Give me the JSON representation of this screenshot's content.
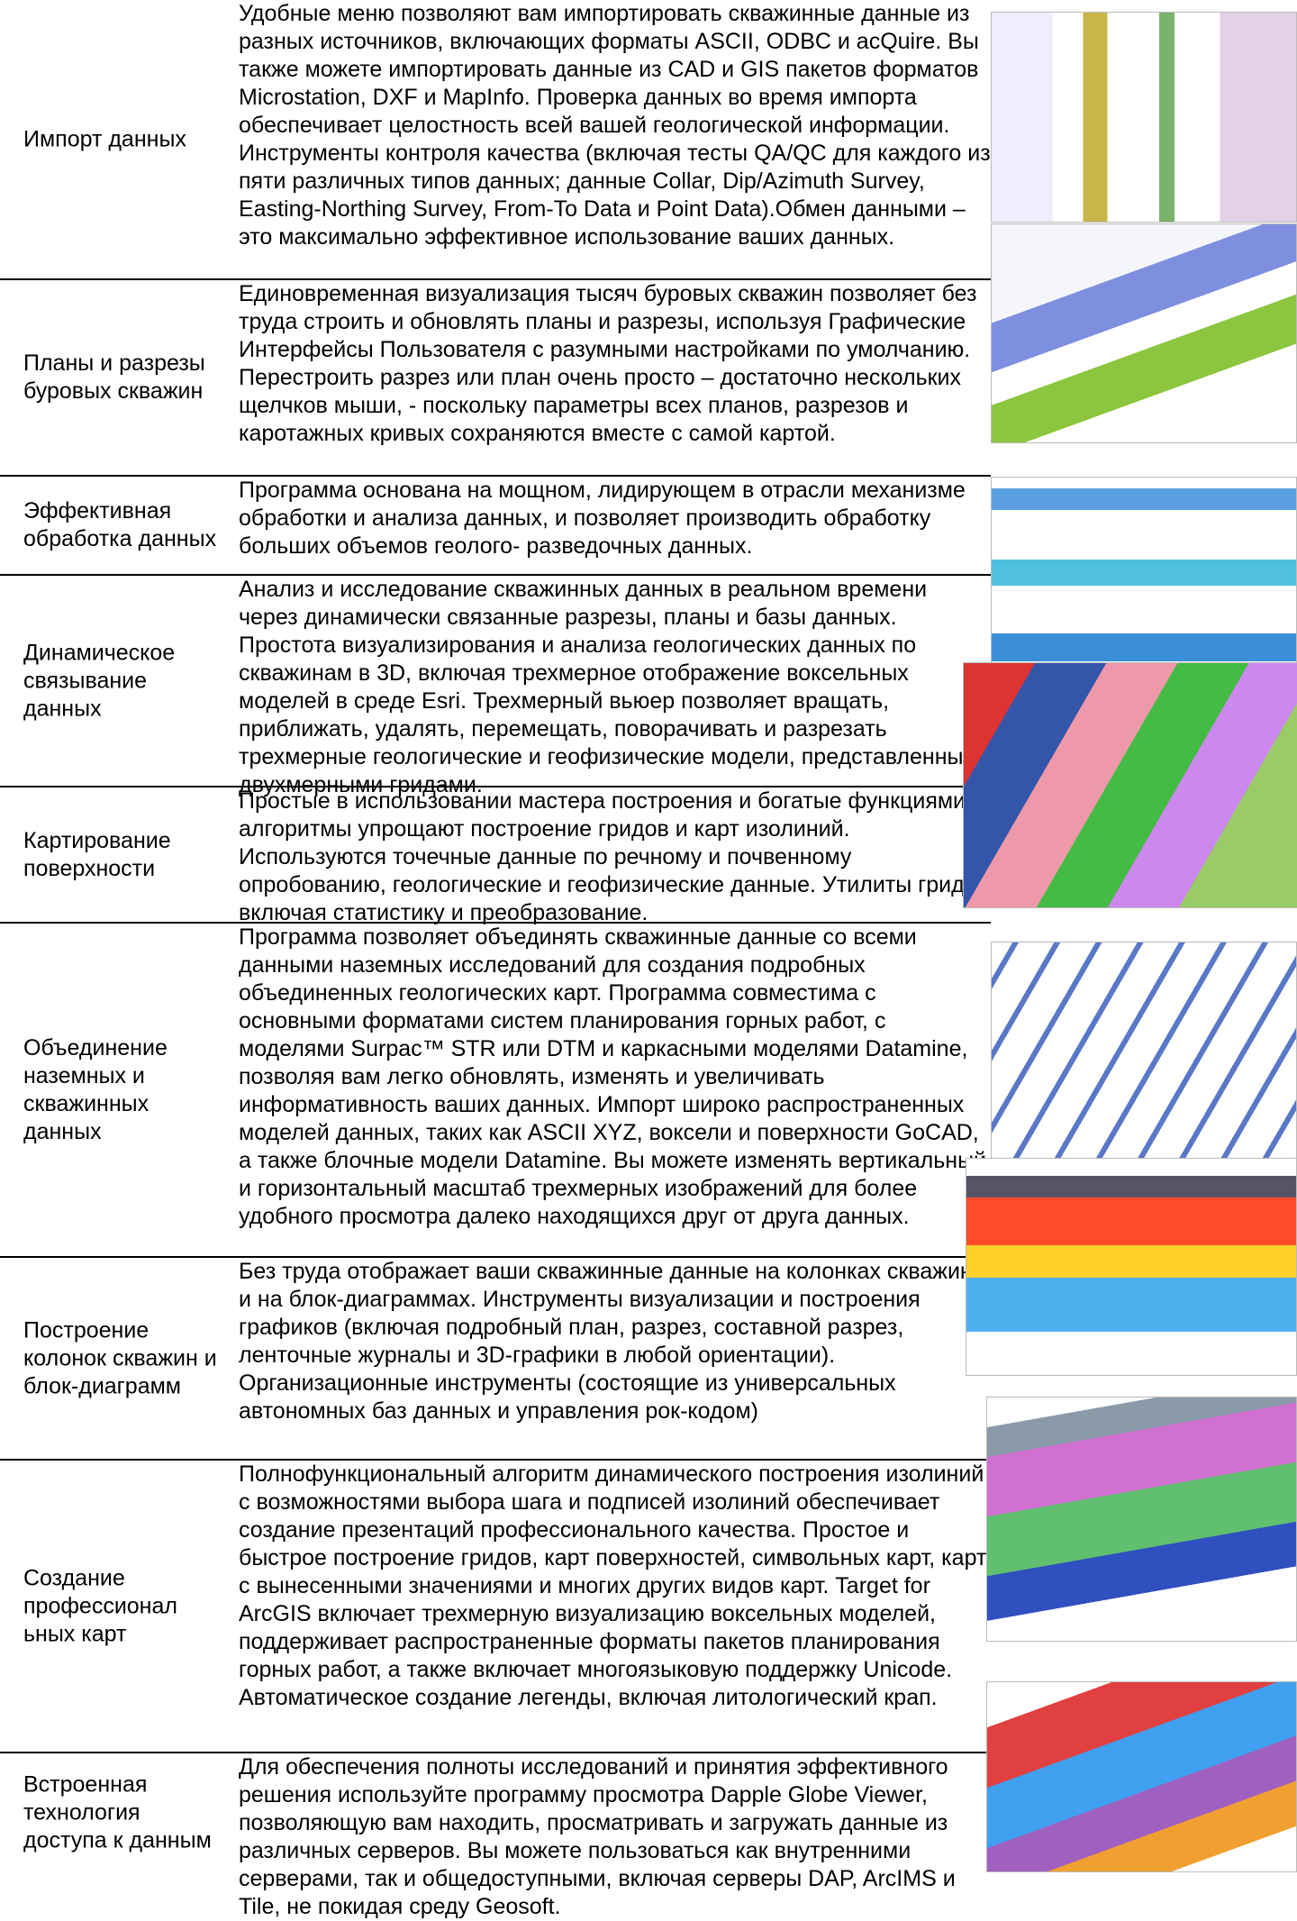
{
  "table": {
    "rows": [
      [
        "Импорт данных",
        "Удобные меню позволяют вам импортировать скважинные данные из разных источников, включающих форматы ASCII, ODBC и acQuire. Вы также можете импортировать данные из CAD и GIS пакетов форматов Microstation, DXF и MapInfo. Проверка данных во время импорта обеспечивает целостность всей вашей геологической информации. Инструменты контроля качества (включая тесты QA/QC для каждого из пяти различных типов данных; данные Collar, Dip/Azimuth Survey, Easting-Northing Survey, From-To Data и Point Data).Обмен данными – это максимально эффективное использование ваших данных."
      ],
      [
        "Планы и разрезы буровых скважин",
        "Единовременная визуализация тысяч буровых скважин позволяет без труда строить и обновлять планы и разрезы, используя Графические Интерфейсы Пользователя с разумными настройками по умолчанию. Перестроить разрез или план очень просто – достаточно нескольких щелчков мыши, - поскольку параметры всех планов, разрезов и каротажных кривых сохраняются вместе с самой картой."
      ],
      [
        "Эффективная обработка данных",
        "Программа основана на мощном, лидирующем в отрасли механизме обработки и анализа данных, и позволяет производить обработку больших объемов геолого- разведочных данных."
      ],
      [
        "Динамическое связывание данных",
        "Анализ и исследование скважинных данных в реальном времени через динамически связанные разрезы, планы и базы данных. Простота визуализирования и анализа геологических данных по скважинам в 3D, включая трехмерное отображение воксельных моделей в среде Esri. Трехмерный вьюер позволяет вращать, приближать, удалять, перемещать, поворачивать и разрезать трехмерные геологические и геофизические модели, представленные двухмерными гридами."
      ],
      [
        "Картирование поверхности",
        "Простые в использовании мастера построения и богатые функциями алгоритмы упрощают построение гридов и карт изолиний. Используются точечные данные по речному и почвенному опробованию, геологические и геофизические данные. Утилиты гридов включая статистику и преобразование."
      ],
      [
        "Объединение наземных и скважинных данных",
        "Программа позволяет объединять скважинные данные со всеми данными наземных исследований для создания подробных объединенных геологических карт. Программа совместима с основными форматами систем планирования горных работ, с моделями Surpac™ STR или DTM и каркасными моделями Datamine, позволяя вам легко обновлять, изменять и увеличивать информативность ваших данных. Импорт широко распространенных моделей данных, таких как ASCII XYZ, воксели и поверхности GoCAD, а также блочные модели Datamine. Вы можете изменять вертикальный и горизонтальный масштаб трехмерных изображений для более удобного просмотра далеко находящихся друг от друга данных."
      ],
      [
        "Построение колонок скважин и блок-диаграмм",
        "Без труда отображает ваши скважинные данные на колонках скважин и на блок-диаграммах. Инструменты визуализации и построения графиков (включая подробный план, разрез, составной разрез, ленточные журналы и 3D-графики в любой ориентации). Организационные инструменты (состоящие из универсальных автономных баз данных и управления рок-кодом)"
      ],
      [
        "Создание профессионал ьных карт",
        "Полнофункциональный алгоритм динамического построения изолиний с возможностями выбора шага и подписей изолиний обеспечивает создание презентаций профессионального качества. Простое и быстрое построение гридов, карт поверхностей, символьных карт, карт с вынесенными значениями и многих других видов карт. Target for ArcGIS включает трехмерную визуализацию воксельных моделей, поддерживает распространенные форматы пакетов планирования горных работ, а также включает многоязыковую поддержку Unicode. Автоматическое создание легенды, включая литологический крап."
      ],
      [
        "Встроенная технология доступа к данным",
        "Для обеспечения полноты исследований и принятия эффективного решения используйте программу просмотра Dapple Globe Viewer, позволяющую вам находить, просматривать и загружать данные из различных серверов. Вы можете пользоваться как внутренними серверами, так и общедоступными, включая серверы DAP, ArcIMS и Tile, не покидая среду Geosoft."
      ]
    ]
  }
}
